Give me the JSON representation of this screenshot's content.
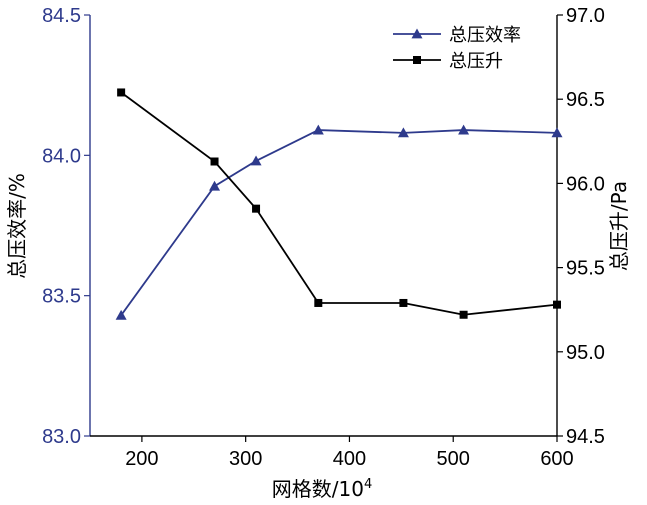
{
  "chart_data": {
    "type": "line",
    "x_values": [
      180,
      270,
      310,
      370,
      452,
      510,
      600
    ],
    "xlabel_text": "网格数/10",
    "xlabel_sup": "4",
    "x_ticks": [
      200,
      300,
      400,
      500,
      600
    ],
    "x_tick_labels": [
      "200",
      "300",
      "400",
      "500",
      "600"
    ],
    "xlim": [
      150,
      600
    ],
    "y_left": {
      "label": "总压效率/%",
      "lim": [
        83.0,
        84.5
      ],
      "ticks": [
        83.0,
        83.5,
        84.0,
        84.5
      ],
      "tick_labels": [
        "83.0",
        "83.5",
        "84.0",
        "84.5"
      ],
      "color": "#2e3a8c"
    },
    "y_right": {
      "label": "总压升/Pa",
      "lim": [
        94.5,
        97.0
      ],
      "ticks": [
        94.5,
        95.0,
        95.5,
        96.0,
        96.5,
        97.0
      ],
      "tick_labels": [
        "94.5",
        "95.0",
        "95.5",
        "96.0",
        "96.5",
        "97.0"
      ],
      "color": "#000000"
    },
    "series": [
      {
        "name": "总压效率",
        "axis": "left",
        "marker": "triangle",
        "color": "#2e3a8c",
        "values": [
          83.43,
          83.89,
          83.98,
          84.09,
          84.08,
          84.09,
          84.08
        ]
      },
      {
        "name": "总压升",
        "axis": "right",
        "marker": "square",
        "color": "#000000",
        "values": [
          96.54,
          96.13,
          95.85,
          95.29,
          95.29,
          95.22,
          95.28
        ]
      }
    ],
    "legend_position": "top-right"
  }
}
